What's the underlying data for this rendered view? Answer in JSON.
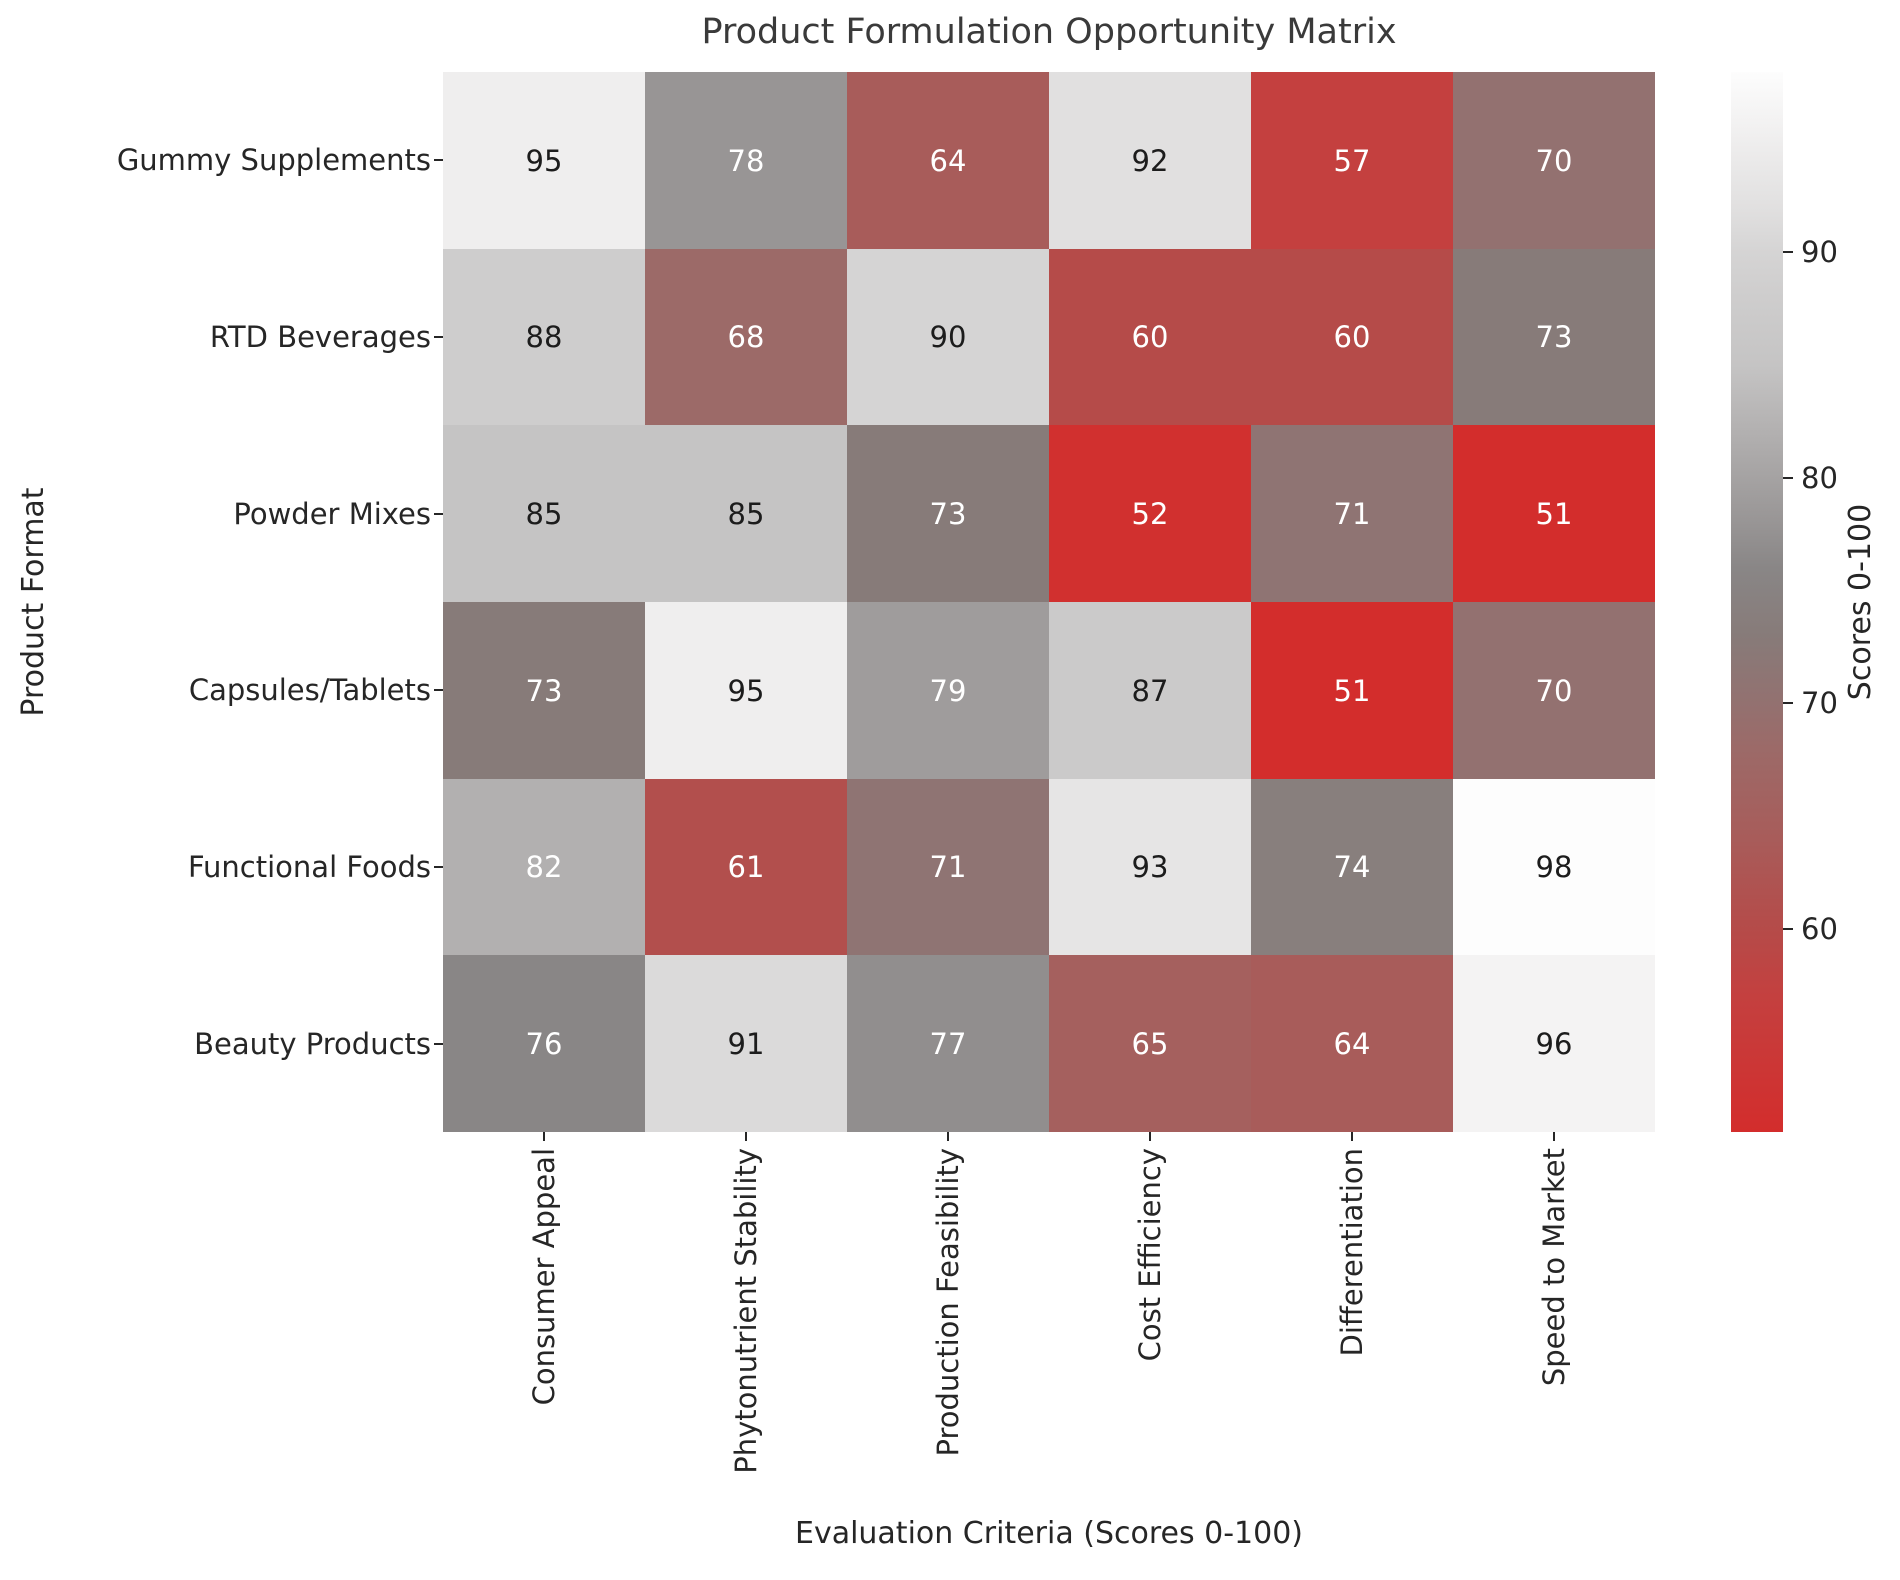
{
  "title": "Product Formulation Opportunity Matrix",
  "chart_data": {
    "type": "heatmap",
    "rows": [
      "Gummy Supplements",
      "RTD Beverages",
      "Powder Mixes",
      "Capsules/Tablets",
      "Functional Foods",
      "Beauty Products"
    ],
    "columns": [
      "Consumer Appeal",
      "Phytonutrient Stability",
      "Production Feasibility",
      "Cost Efficiency",
      "Differentiation",
      "Speed to Market"
    ],
    "values": [
      [
        95,
        78,
        64,
        92,
        57,
        70
      ],
      [
        88,
        68,
        90,
        60,
        60,
        73
      ],
      [
        85,
        85,
        73,
        52,
        71,
        51
      ],
      [
        73,
        95,
        79,
        87,
        51,
        70
      ],
      [
        82,
        61,
        71,
        93,
        74,
        98
      ],
      [
        76,
        91,
        77,
        65,
        64,
        96
      ]
    ],
    "title": "Product Formulation Opportunity Matrix",
    "xlabel": "Evaluation Criteria (Scores 0-100)",
    "ylabel": "Product Format",
    "annotations_on": true,
    "grid": false,
    "colorbar": {
      "label": "Scores 0-100",
      "ticks": [
        60,
        70,
        80,
        90
      ],
      "vmin": 51,
      "vmax": 98,
      "position": "right"
    },
    "colormap": {
      "description": "red to gray to white",
      "anchors": [
        [
          51,
          "#d32d2c"
        ],
        [
          57,
          "#c4403f"
        ],
        [
          60,
          "#b54b49"
        ],
        [
          64,
          "#a85c5a"
        ],
        [
          68,
          "#9c6a68"
        ],
        [
          70,
          "#937170"
        ],
        [
          73,
          "#877b79"
        ],
        [
          76,
          "#898686"
        ],
        [
          78,
          "#989595"
        ],
        [
          82,
          "#b2b0b0"
        ],
        [
          85,
          "#c5c4c4"
        ],
        [
          88,
          "#cecdcd"
        ],
        [
          90,
          "#d5d4d4"
        ],
        [
          92,
          "#e1e0e0"
        ],
        [
          95,
          "#efeeee"
        ],
        [
          98,
          "#fdfdfd"
        ]
      ],
      "dark_text_threshold": 85,
      "dark_text_color": "#1c1c1c",
      "light_text_color": "#ffffff"
    }
  }
}
